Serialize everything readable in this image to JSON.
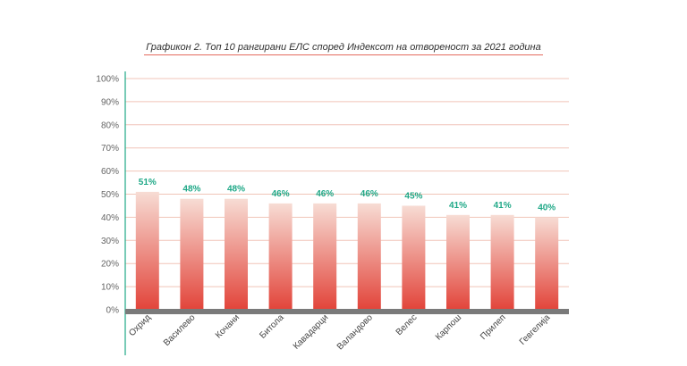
{
  "chart_data": {
    "type": "bar",
    "title": "Графикон 2. Топ 10 рангирани ЕЛС според Индексот на отвореност за 2021 година",
    "xlabel": "",
    "ylabel": "",
    "categories": [
      "Охрид",
      "Василево",
      "Кочани",
      "Битола",
      "Кавадарци",
      "Валандово",
      "Велес",
      "Карпош",
      "Прилеп",
      "Гевгелија"
    ],
    "values": [
      51,
      48,
      48,
      46,
      46,
      46,
      45,
      41,
      41,
      40
    ],
    "data_labels": [
      "51%",
      "48%",
      "48%",
      "46%",
      "46%",
      "46%",
      "45%",
      "41%",
      "41%",
      "40%"
    ],
    "ylim": [
      0,
      100
    ],
    "yticks": [
      "0%",
      "10%",
      "20%",
      "30%",
      "40%",
      "50%",
      "60%",
      "70%",
      "80%",
      "90%",
      "100%"
    ],
    "grid": true,
    "colors": {
      "bar_top": "#f7dcd4",
      "bar_bottom": "#e2443a",
      "grid": "#f1c4b8",
      "axis_left": "#1fa887",
      "baseline": "#7a7a7a",
      "data_label": "#1fa887"
    }
  }
}
